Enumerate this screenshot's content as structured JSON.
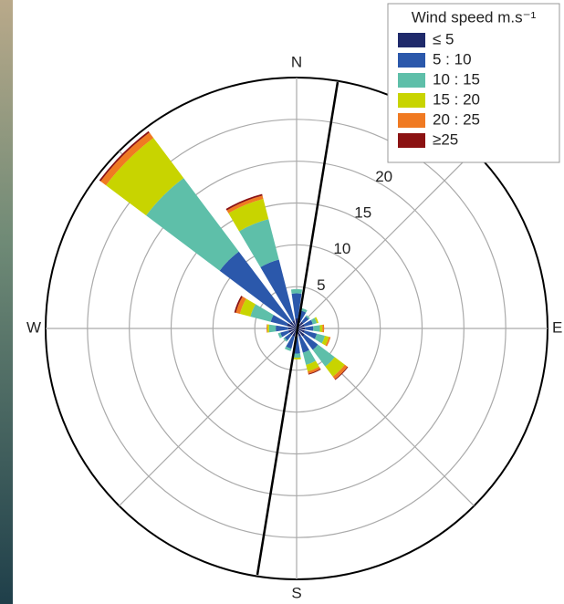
{
  "chart_data": {
    "type": "windrose",
    "categories": [
      "N",
      null,
      null,
      null,
      "E",
      null,
      null,
      null,
      "S",
      null,
      null,
      null,
      "W",
      null,
      null,
      null
    ],
    "legend_title": "Wind speed m.s⁻¹",
    "rlim": [
      0,
      30
    ],
    "rticks": [
      5,
      10,
      15,
      20,
      25
    ],
    "grid": true,
    "legend": "upper right",
    "series": [
      {
        "name": "≤ 5",
        "color": "#1f2a6b",
        "values": [
          1.2,
          1,
          1,
          1,
          1,
          1,
          1.2,
          1,
          1,
          1,
          1,
          1,
          1,
          1.2,
          1,
          1
        ]
      },
      {
        "name": "5 : 10",
        "color": "#2b58ab",
        "values": [
          3,
          1.2,
          0.8,
          1,
          1,
          1.5,
          2,
          2,
          2,
          1.5,
          0.8,
          1,
          1.5,
          2,
          10.5,
          7.5
        ]
      },
      {
        "name": "10 : 15",
        "color": "#5ebfa9",
        "values": [
          0.5,
          0.3,
          0.2,
          0.5,
          0.8,
          1,
          2.5,
          1.5,
          0.5,
          0.3,
          0.2,
          0.3,
          0.8,
          2.5,
          11,
          5
        ]
      },
      {
        "name": "15 : 20",
        "color": "#c8d400",
        "values": [
          0,
          0,
          0,
          0.2,
          0.3,
          0.5,
          1.5,
          0.8,
          0.2,
          0,
          0,
          0,
          0.2,
          1.3,
          6,
          2.5
        ]
      },
      {
        "name": "20 : 25",
        "color": "#f07a22",
        "values": [
          0,
          0,
          0,
          0,
          0.2,
          0.2,
          0.4,
          0.3,
          0,
          0,
          0,
          0,
          0.1,
          0.5,
          0.8,
          0.4
        ]
      },
      {
        "name": "≥25",
        "color": "#8b1212",
        "values": [
          0,
          0,
          0,
          0,
          0,
          0,
          0.1,
          0.1,
          0,
          0,
          0,
          0,
          0,
          0.2,
          0.2,
          0.2
        ]
      }
    ]
  }
}
